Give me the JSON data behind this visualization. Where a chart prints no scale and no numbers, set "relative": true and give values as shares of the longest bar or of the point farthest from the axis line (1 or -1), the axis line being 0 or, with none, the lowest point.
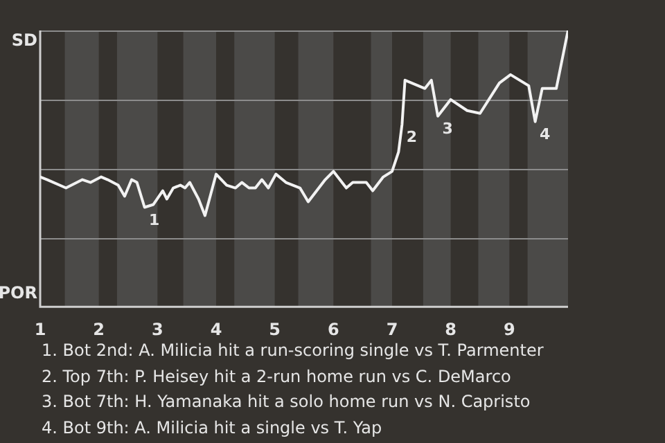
{
  "chart_data": {
    "type": "line",
    "color": "#f2f2f2",
    "relative": true,
    "x": [
      1,
      1.12,
      1.44,
      1.72,
      1.86,
      2.04,
      2.15,
      2.33,
      2.44,
      2.56,
      2.65,
      2.78,
      2.93,
      3.09,
      3.16,
      3.27,
      3.39,
      3.47,
      3.55,
      3.7,
      3.81,
      4,
      4.18,
      4.33,
      4.44,
      4.56,
      4.67,
      4.78,
      4.89,
      5.02,
      5.19,
      5.43,
      5.57,
      5.86,
      6,
      6.22,
      6.33,
      6.56,
      6.67,
      6.85,
      7,
      7.11,
      7.17,
      7.22,
      7.56,
      7.67,
      7.78,
      8,
      8.28,
      8.5,
      8.83,
      9.02,
      9.33,
      9.44,
      9.56,
      9.8,
      10
    ],
    "values": [
      0.47,
      0.46,
      0.43,
      0.46,
      0.45,
      0.47,
      0.46,
      0.44,
      0.4,
      0.46,
      0.45,
      0.36,
      0.37,
      0.42,
      0.39,
      0.43,
      0.44,
      0.43,
      0.45,
      0.39,
      0.33,
      0.48,
      0.44,
      0.43,
      0.45,
      0.43,
      0.43,
      0.46,
      0.43,
      0.48,
      0.45,
      0.43,
      0.38,
      0.46,
      0.49,
      0.43,
      0.45,
      0.45,
      0.42,
      0.47,
      0.49,
      0.56,
      0.66,
      0.82,
      0.79,
      0.82,
      0.69,
      0.75,
      0.71,
      0.7,
      0.81,
      0.84,
      0.8,
      0.67,
      0.79,
      0.79,
      1
    ],
    "xlim": [
      1,
      10
    ],
    "xticks": [
      1,
      2,
      3,
      4,
      5,
      6,
      7,
      8,
      9
    ],
    "grid": "y",
    "marker": "none",
    "line_style": "solid",
    "bands": [
      {
        "axis": "x",
        "from": 1.42,
        "to": 2,
        "color": "#4b4a48"
      },
      {
        "axis": "x",
        "from": 2.31,
        "to": 3,
        "color": "#4b4a48"
      },
      {
        "axis": "x",
        "from": 3.44,
        "to": 4,
        "color": "#4b4a48"
      },
      {
        "axis": "x",
        "from": 4.31,
        "to": 5,
        "color": "#4b4a48"
      },
      {
        "axis": "x",
        "from": 5.4,
        "to": 6,
        "color": "#4b4a48"
      },
      {
        "axis": "x",
        "from": 6.64,
        "to": 7,
        "color": "#4b4a48"
      },
      {
        "axis": "x",
        "from": 7.53,
        "to": 8,
        "color": "#4b4a48"
      },
      {
        "axis": "x",
        "from": 8.47,
        "to": 9,
        "color": "#4b4a48"
      },
      {
        "axis": "x",
        "from": 9.31,
        "to": 10,
        "color": "#4b4a48"
      }
    ],
    "annotations": [
      "SD",
      "POR",
      {
        "text": "1",
        "x": 2.78,
        "y": 0.36
      },
      {
        "text": "2",
        "x": 7.17,
        "y": 0.66
      },
      {
        "text": "3",
        "x": 7.78,
        "y": 0.69
      },
      {
        "text": "4",
        "x": 9.44,
        "y": 0.67
      },
      "1. Bot 2nd: A. Milicia hit a run-scoring single vs T. Parmenter",
      "2. Top 7th: P. Heisey hit a 2-run home run vs C. DeMarco",
      "3. Bot 7th: H. Yamanaka hit a solo home run vs N. Capristo",
      "4. Bot 9th: A. Milicia hit a single vs T. Yap"
    ]
  }
}
